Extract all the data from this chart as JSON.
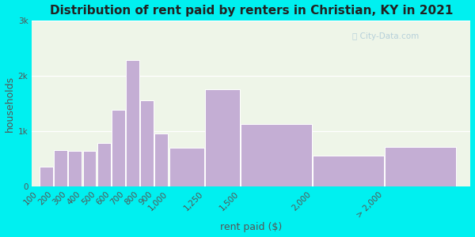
{
  "title": "Distribution of rent paid by renters in Christian, KY in 2021",
  "xlabel": "rent paid ($)",
  "ylabel": "households",
  "bar_color": "#c4aed4",
  "bar_edge_color": "#ffffff",
  "background_outer": "#00f0f0",
  "background_inner": "#eef5e8",
  "categories": [
    "100",
    "200",
    "300",
    "400",
    "500",
    "600",
    "700",
    "800",
    "900",
    "1,000",
    "1,250",
    "1,500",
    "2,000",
    "> 2,000"
  ],
  "values": [
    350,
    650,
    640,
    640,
    780,
    1380,
    2280,
    1560,
    950,
    700,
    1750,
    1130,
    560,
    720
  ],
  "bar_lefts": [
    100,
    200,
    300,
    400,
    500,
    600,
    700,
    800,
    900,
    1000,
    1250,
    1500,
    2000,
    2500
  ],
  "bar_widths": [
    100,
    100,
    100,
    100,
    100,
    100,
    100,
    100,
    100,
    250,
    250,
    500,
    500,
    500
  ],
  "xtick_positions": [
    100,
    200,
    300,
    400,
    500,
    600,
    700,
    800,
    900,
    1000,
    1250,
    1500,
    2000,
    2500
  ],
  "xtick_labels": [
    "100",
    "200",
    "300",
    "400",
    "500",
    "600",
    "700",
    "800",
    "900",
    "1,000",
    "1,250",
    "1,500",
    "2,000",
    "> 2,000"
  ],
  "ylim": [
    0,
    3000
  ],
  "xlim": [
    50,
    3100
  ],
  "yticks": [
    0,
    1000,
    2000,
    3000
  ],
  "ytick_labels": [
    "0",
    "1k",
    "2k",
    "3k"
  ],
  "title_fontsize": 11,
  "axis_label_fontsize": 9,
  "tick_fontsize": 7.5
}
